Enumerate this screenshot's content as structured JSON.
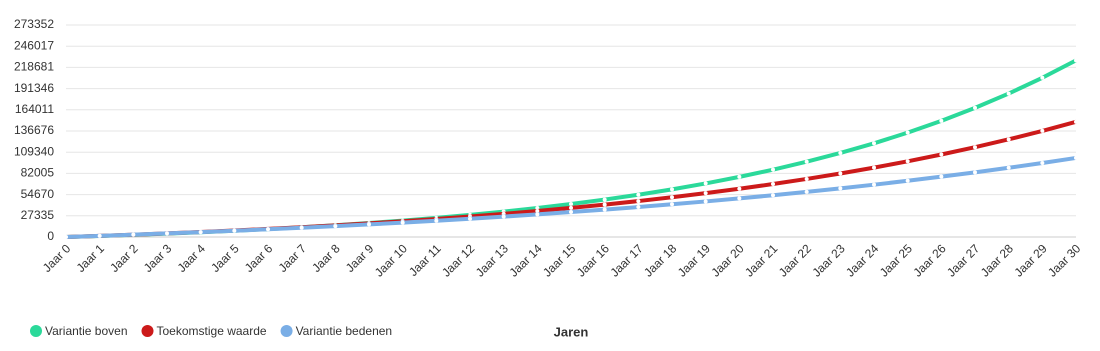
{
  "chart_data": {
    "type": "line",
    "x_label": "Jaren",
    "categories": [
      "Jaar 0",
      "Jaar 1",
      "Jaar 2",
      "Jaar 3",
      "Jaar 4",
      "Jaar 5",
      "Jaar 6",
      "Jaar 7",
      "Jaar 8",
      "Jaar 9",
      "Jaar 10",
      "Jaar 11",
      "Jaar 12",
      "Jaar 13",
      "Jaar 14",
      "Jaar 15",
      "Jaar 16",
      "Jaar 17",
      "Jaar 18",
      "Jaar 19",
      "Jaar 20",
      "Jaar 21",
      "Jaar 22",
      "Jaar 23",
      "Jaar 24",
      "Jaar 25",
      "Jaar 26",
      "Jaar 27",
      "Jaar 28",
      "Jaar 29",
      "Jaar 30"
    ],
    "series": [
      {
        "name": "Variantie boven",
        "color": "#2bd99a",
        "values": [
          0,
          1308,
          2751,
          4342,
          6097,
          8033,
          10168,
          12524,
          15122,
          17987,
          21148,
          24634,
          28479,
          32720,
          37399,
          42558,
          48250,
          54528,
          61452,
          69089,
          77513,
          86805,
          97054,
          108359,
          120830,
          134583,
          149753,
          166485,
          184940,
          205296,
          227750
        ]
      },
      {
        "name": "Toekomstige waarde",
        "color": "#cc1a1a",
        "values": [
          0,
          1436,
          2979,
          4639,
          6424,
          8341,
          10403,
          12618,
          15002,
          17562,
          20315,
          23275,
          26457,
          29877,
          33553,
          37507,
          41755,
          46325,
          51233,
          56512,
          62187,
          68285,
          74843,
          81893,
          89471,
          97616,
          106374,
          115788,
          125907,
          136787,
          148484
        ]
      },
      {
        "name": "Variantie bedenen",
        "color": "#7aaee6",
        "values": [
          0,
          1457,
          2991,
          4607,
          6306,
          8097,
          9983,
          11971,
          14063,
          16265,
          18585,
          21026,
          23596,
          26305,
          29158,
          32161,
          35323,
          38652,
          42157,
          45849,
          49736,
          53829,
          58140,
          62678,
          67456,
          72490,
          77787,
          83368,
          89243,
          95431,
          101947
        ]
      }
    ],
    "ylim": [
      0,
      273352
    ],
    "yticks": [
      0,
      27335,
      54670,
      82005,
      109340,
      136676,
      164011,
      191346,
      218681,
      246017,
      273352
    ],
    "grid": true,
    "legend": "bottom-left"
  }
}
